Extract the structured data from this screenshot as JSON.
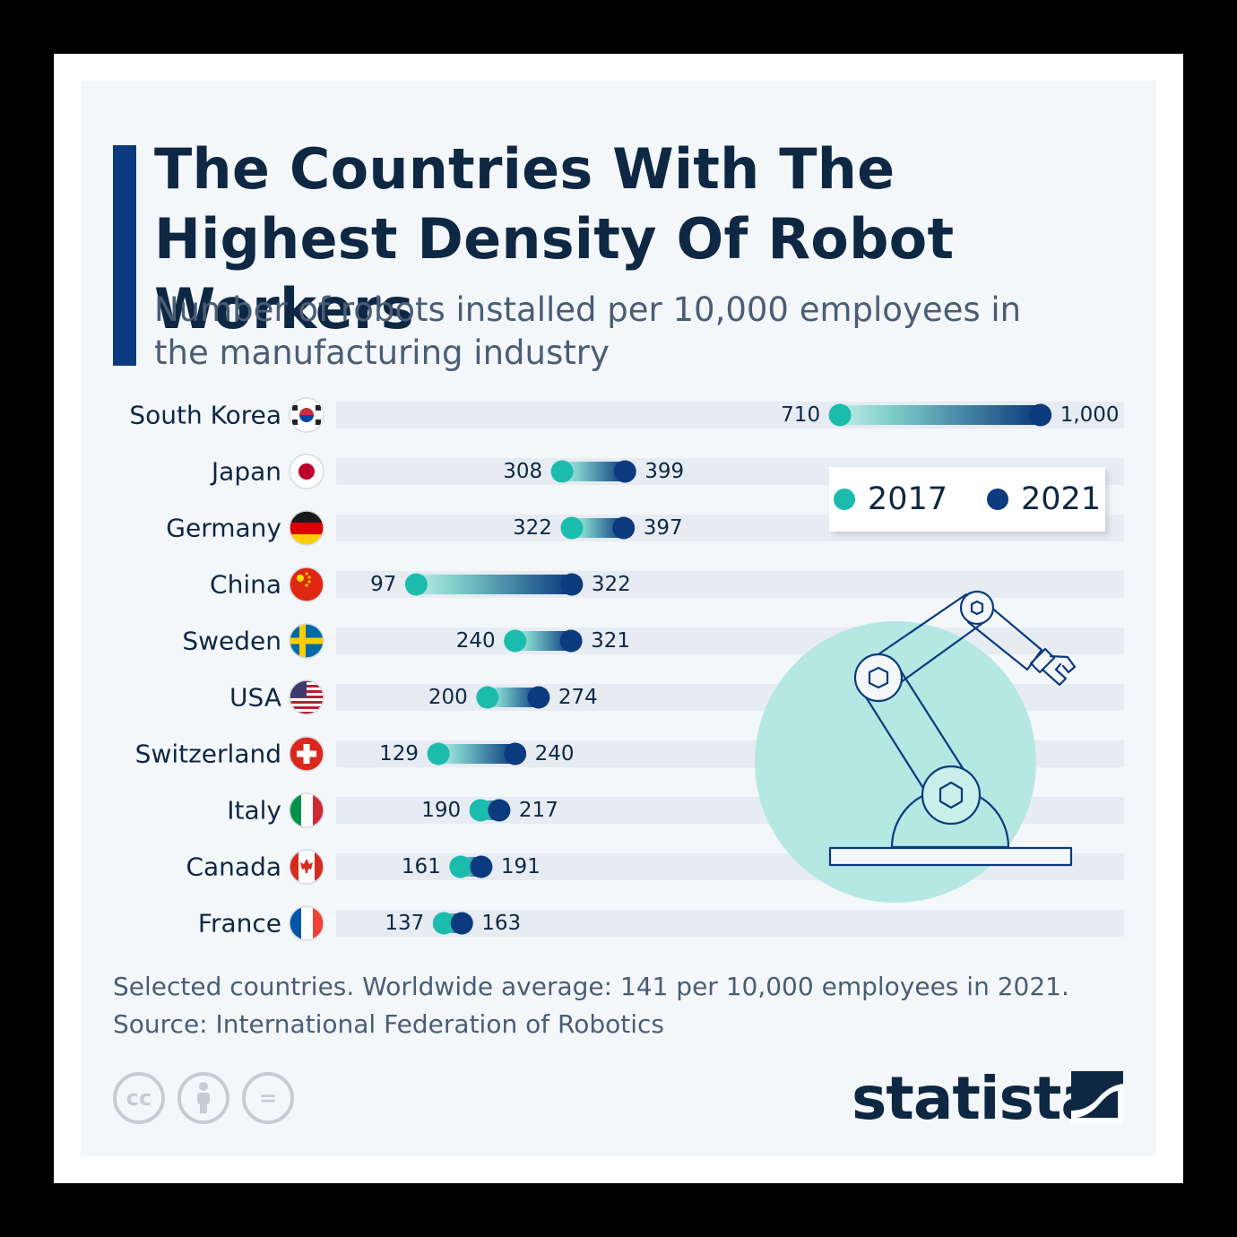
{
  "title": "The Countries With The Highest Density Of Robot Workers",
  "subtitle": "Number of robots installed per 10,000 employees in the manufacturing industry",
  "colors": {
    "accent": "#0b3a7e",
    "dot_2017": "#1bbcad",
    "dot_2021": "#0b3a7e",
    "row_bg": "#e7ecf3",
    "illustration_circle": "#b5e8e2"
  },
  "chart_data": {
    "type": "dumbbell",
    "categories": [
      "South Korea",
      "Japan",
      "Germany",
      "China",
      "Sweden",
      "USA",
      "Switzerland",
      "Italy",
      "Canada",
      "France"
    ],
    "series": [
      {
        "name": "2017",
        "values": [
          710,
          308,
          322,
          97,
          240,
          200,
          129,
          190,
          161,
          137
        ]
      },
      {
        "name": "2021",
        "values": [
          1000,
          399,
          397,
          322,
          321,
          274,
          240,
          217,
          191,
          163
        ]
      }
    ],
    "value_labels_2017": [
      "710",
      "308",
      "322",
      "97",
      "240",
      "200",
      "129",
      "190",
      "161",
      "137"
    ],
    "value_labels_2021": [
      "1,000",
      "399",
      "397",
      "322",
      "321",
      "274",
      "240",
      "217",
      "191",
      "163"
    ],
    "flags": [
      "south-korea-flag",
      "japan-flag",
      "germany-flag",
      "china-flag",
      "sweden-flag",
      "usa-flag",
      "switzerland-flag",
      "italy-flag",
      "canada-flag",
      "france-flag"
    ],
    "xlim": [
      0,
      1000
    ],
    "grid": false,
    "legend_position": "top-right"
  },
  "legend": {
    "label_2017": "2017",
    "label_2021": "2021"
  },
  "footnote": {
    "note": "Selected countries. Worldwide average: 141 per 10,000 employees in 2021.",
    "source": "Source: International Federation of Robotics"
  },
  "license_icons": [
    "cc-icon",
    "attribution-icon",
    "no-derivatives-icon"
  ],
  "license_labels": {
    "cc": "cc",
    "equals": "="
  },
  "brand": "statista"
}
